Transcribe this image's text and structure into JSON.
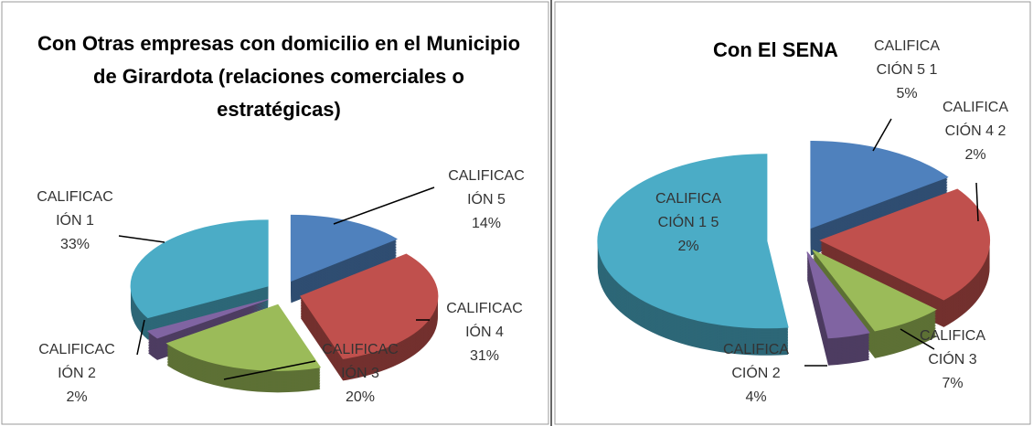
{
  "chart_data": [
    {
      "type": "pie3d",
      "title": "Con Otras empresas con domicilio en el Municipio de Girardota (relaciones comerciales o estratégicas)",
      "categories": [
        "CALIFICACIÓN 5",
        "CALIFICACIÓN 4",
        "CALIFICACIÓN 3",
        "CALIFICACIÓN 2",
        "CALIFICACIÓN 1"
      ],
      "values": [
        14,
        31,
        20,
        2,
        33
      ],
      "value_labels": [
        "14%",
        "31%",
        "20%",
        "2%",
        "33%"
      ],
      "colors": [
        "#4f81bd",
        "#c0504d",
        "#9bbb59",
        "#8064a2",
        "#4bacc6"
      ]
    },
    {
      "type": "pie3d",
      "title": "Con El SENA",
      "categories": [
        "CALIFICACIÓN 5",
        "CALIFICACIÓN 4",
        "CALIFICACIÓN 3",
        "CALIFICACIÓN 2",
        "CALIFICACIÓN 1"
      ],
      "values": [
        15,
        22,
        7,
        4,
        52
      ],
      "value_labels": [
        "15%",
        "22%",
        "7%",
        "4%",
        "52%"
      ],
      "colors": [
        "#4f81bd",
        "#c0504d",
        "#9bbb59",
        "#8064a2",
        "#4bacc6"
      ]
    }
  ]
}
